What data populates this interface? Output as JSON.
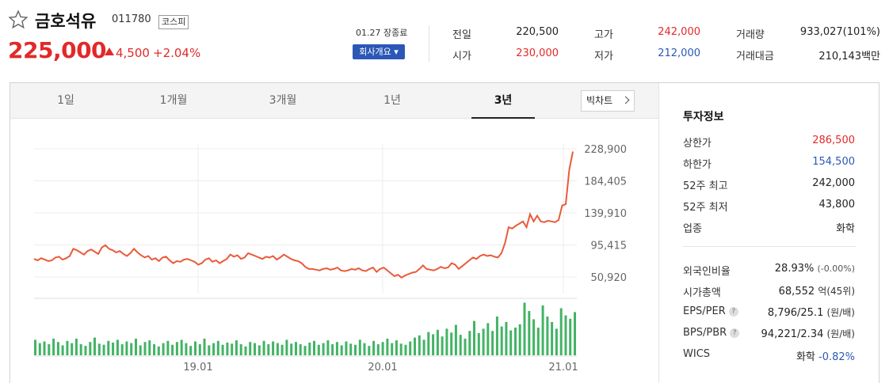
{
  "header": {
    "stock_name": "금호석유",
    "stock_code": "011780",
    "market": "코스피",
    "price": "225,000",
    "change": "4,500",
    "change_pct": "+2.04%",
    "close_label": "01.27 장종료",
    "company_button": "회사개요 ▾",
    "stats": {
      "prev_close_label": "전일",
      "prev_close": "220,500",
      "high_label": "고가",
      "high": "242,000",
      "volume_label": "거래량",
      "volume": "933,027(101%)",
      "open_label": "시가",
      "open": "230,000",
      "low_label": "저가",
      "low": "212,000",
      "trade_value_label": "거래대금",
      "trade_value": "210,143백만"
    },
    "colors": {
      "up": "#e22929",
      "down": "#2b58b7"
    }
  },
  "tabs": [
    "1일",
    "1개월",
    "3개월",
    "1년",
    "3년"
  ],
  "active_tab": "3년",
  "big_chart_label": "빅차트",
  "chart_data": {
    "type": "line",
    "period": "3년",
    "y_ticks": [
      228900,
      184405,
      139910,
      95415,
      50920
    ],
    "y_tick_labels": [
      "228,900",
      "184,405",
      "139,910",
      "95,415",
      "50,920"
    ],
    "ylim": [
      50920,
      228900
    ],
    "x_tick_labels": [
      "19.01",
      "20.01",
      "21.01"
    ],
    "series": [
      {
        "values": [
          76000,
          74000,
          77000,
          75000,
          73000,
          74000,
          78000,
          79000,
          75000,
          77000,
          80000,
          90000,
          88000,
          85000,
          82000,
          87000,
          89000,
          86000,
          83000,
          92000,
          95000,
          90000,
          88000,
          85000,
          87000,
          83000,
          80000,
          84000,
          90000,
          85000,
          81000,
          78000,
          80000,
          75000,
          77000,
          73000,
          78000,
          79000,
          74000,
          70000,
          73000,
          72000,
          75000,
          76000,
          74000,
          72000,
          68000,
          70000,
          75000,
          77000,
          72000,
          74000,
          70000,
          73000,
          76000,
          82000,
          79000,
          81000,
          76000,
          78000,
          84000,
          82000,
          80000,
          78000,
          76000,
          79000,
          78000,
          80000,
          75000,
          78000,
          82000,
          79000,
          76000,
          74000,
          73000,
          70000,
          65000,
          62000,
          62000,
          61000,
          60000,
          62000,
          63000,
          61000,
          62000,
          64000,
          60000,
          59000,
          60000,
          62000,
          61000,
          63000,
          60000,
          59000,
          62000,
          64000,
          58000,
          62000,
          64000,
          60000,
          56000,
          52000,
          54000,
          50000,
          53000,
          55000,
          57000,
          58000,
          62000,
          67000,
          62000,
          61000,
          60000,
          62000,
          65000,
          63000,
          64000,
          70000,
          68000,
          62000,
          66000,
          70000,
          74000,
          78000,
          76000,
          80000,
          82000,
          80000,
          81000,
          79000,
          78000,
          84000,
          98000,
          120000,
          118000,
          122000,
          125000,
          128000,
          120000,
          138000,
          128000,
          136000,
          128000,
          127000,
          129000,
          128000,
          127000,
          130000,
          150000,
          152000,
          200000,
          225000
        ]
      }
    ],
    "volume_bars": [
      0.28,
      0.22,
      0.25,
      0.2,
      0.3,
      0.24,
      0.18,
      0.26,
      0.22,
      0.3,
      0.2,
      0.17,
      0.24,
      0.32,
      0.21,
      0.19,
      0.26,
      0.23,
      0.28,
      0.2,
      0.25,
      0.22,
      0.3,
      0.18,
      0.24,
      0.27,
      0.2,
      0.16,
      0.22,
      0.26,
      0.19,
      0.24,
      0.28,
      0.22,
      0.17,
      0.25,
      0.2,
      0.3,
      0.18,
      0.22,
      0.26,
      0.19,
      0.23,
      0.21,
      0.27,
      0.2,
      0.16,
      0.24,
      0.22,
      0.18,
      0.26,
      0.2,
      0.25,
      0.22,
      0.19,
      0.28,
      0.21,
      0.24,
      0.2,
      0.17,
      0.23,
      0.26,
      0.19,
      0.22,
      0.27,
      0.2,
      0.24,
      0.18,
      0.25,
      0.21,
      0.19,
      0.28,
      0.22,
      0.17,
      0.26,
      0.2,
      0.24,
      0.3,
      0.22,
      0.27,
      0.21,
      0.19,
      0.25,
      0.32,
      0.36,
      0.28,
      0.42,
      0.38,
      0.46,
      0.34,
      0.48,
      0.41,
      0.55,
      0.37,
      0.3,
      0.44,
      0.62,
      0.4,
      0.48,
      0.58,
      0.44,
      0.7,
      0.52,
      0.6,
      0.45,
      0.5,
      0.56,
      0.95,
      0.8,
      0.65,
      0.5,
      0.9,
      0.7,
      0.6,
      0.48,
      0.85,
      0.72,
      0.66,
      0.78
    ]
  },
  "investment": {
    "title": "투자정보",
    "rows": [
      {
        "label": "상한가",
        "value": "286,500"
      },
      {
        "label": "하한가",
        "value": "154,500"
      },
      {
        "label": "52주 최고",
        "value": "242,000"
      },
      {
        "label": "52주 최저",
        "value": "43,800"
      },
      {
        "label": "업종",
        "value": "화학"
      }
    ],
    "rows2": [
      {
        "label": "외국인비율",
        "value": "28.93%",
        "sub": "(-0.00%)"
      },
      {
        "label": "시가총액",
        "value": "68,552",
        "sub": "억(45위)"
      },
      {
        "label": "EPS/PER",
        "value": "8,796/25.1",
        "sub": "(원/배)"
      },
      {
        "label": "BPS/PBR",
        "value": "94,221/2.34",
        "sub": "(원/배)"
      },
      {
        "label": "WICS",
        "value": "화학",
        "sub": "-0.82%"
      }
    ]
  }
}
